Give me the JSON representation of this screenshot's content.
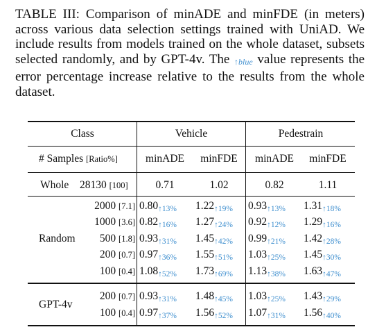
{
  "caption": {
    "label": "TABLE III:",
    "text_before": "Comparison of minADE and minFDE (in meters) across various data selection settings trained with UniAD. We include results from models trained on the whole dataset, subsets selected randomly, and by GPT-4v. The",
    "arrow": "↑",
    "sub_word": "blue",
    "text_after": "value represents the error percentage increase relative to the results from the whole dataset."
  },
  "headers": {
    "class": "Class",
    "vehicle": "Vehicle",
    "pedestrian": "Pedestrain",
    "samples_label": "# Samples",
    "ratio_label": "[Ratio%]",
    "minade": "minADE",
    "minfde": "minFDE"
  },
  "whole": {
    "label": "Whole",
    "samples": "28130",
    "ratio": "[100]",
    "v_ade": "0.71",
    "v_fde": "1.02",
    "p_ade": "0.82",
    "p_fde": "1.11"
  },
  "random": {
    "label": "Random",
    "rows": [
      {
        "samples": "2000",
        "ratio": "[7.1]",
        "v_ade": "0.80",
        "v_ade_inc": "↑13%",
        "v_fde": "1.22",
        "v_fde_inc": "↑19%",
        "p_ade": "0.93",
        "p_ade_inc": "↑13%",
        "p_fde": "1.31",
        "p_fde_inc": "↑18%"
      },
      {
        "samples": "1000",
        "ratio": "[3.6]",
        "v_ade": "0.82",
        "v_ade_inc": "↑16%",
        "v_fde": "1.27",
        "v_fde_inc": "↑24%",
        "p_ade": "0.92",
        "p_ade_inc": "↑12%",
        "p_fde": "1.29",
        "p_fde_inc": "↑16%"
      },
      {
        "samples": "500",
        "ratio": "[1.8]",
        "v_ade": "0.93",
        "v_ade_inc": "↑31%",
        "v_fde": "1.45",
        "v_fde_inc": "↑42%",
        "p_ade": "0.99",
        "p_ade_inc": "↑21%",
        "p_fde": "1.42",
        "p_fde_inc": "↑28%"
      },
      {
        "samples": "200",
        "ratio": "[0.7]",
        "v_ade": "0.97",
        "v_ade_inc": "↑36%",
        "v_fde": "1.55",
        "v_fde_inc": "↑51%",
        "p_ade": "1.03",
        "p_ade_inc": "↑25%",
        "p_fde": "1.45",
        "p_fde_inc": "↑30%"
      },
      {
        "samples": "100",
        "ratio": "[0.4]",
        "v_ade": "1.08",
        "v_ade_inc": "↑52%",
        "v_fde": "1.73",
        "v_fde_inc": "↑69%",
        "p_ade": "1.13",
        "p_ade_inc": "↑38%",
        "p_fde": "1.63",
        "p_fde_inc": "↑47%"
      }
    ]
  },
  "gpt": {
    "label": "GPT-4v",
    "rows": [
      {
        "samples": "200",
        "ratio": "[0.7]",
        "v_ade": "0.93",
        "v_ade_inc": "↑31%",
        "v_fde": "1.48",
        "v_fde_inc": "↑45%",
        "p_ade": "1.03",
        "p_ade_inc": "↑25%",
        "p_fde": "1.43",
        "p_fde_inc": "↑29%"
      },
      {
        "samples": "100",
        "ratio": "[0.4]",
        "v_ade": "0.97",
        "v_ade_inc": "↑37%",
        "v_fde": "1.56",
        "v_fde_inc": "↑52%",
        "p_ade": "1.07",
        "p_ade_inc": "↑31%",
        "p_fde": "1.56",
        "p_fde_inc": "↑40%"
      }
    ]
  },
  "colors": {
    "increase": "#3f8fcf",
    "text": "#111111"
  }
}
